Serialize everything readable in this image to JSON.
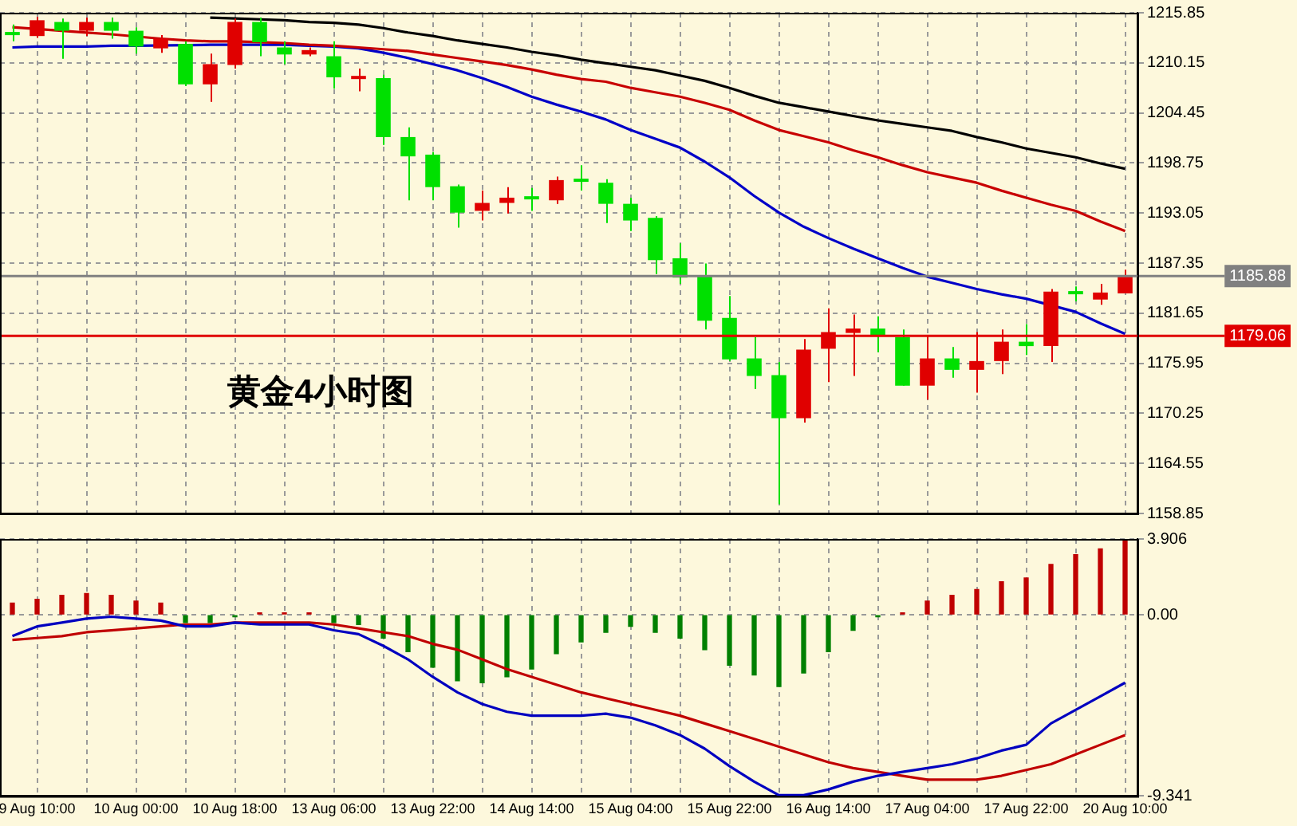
{
  "chart_data": [
    {
      "type": "candlestick",
      "categories": [
        null,
        null,
        null,
        null,
        null,
        null,
        null,
        null,
        null,
        null,
        null,
        null,
        null,
        null,
        null,
        null,
        null,
        null,
        null,
        null,
        null,
        null,
        null,
        null,
        null,
        null,
        null,
        null,
        null,
        null,
        null,
        null,
        null,
        null,
        null,
        null,
        null,
        null,
        null,
        null,
        null,
        null,
        null,
        null,
        null,
        null
      ],
      "ohlc": [
        [
          1213.5,
          1214.5,
          1212.6,
          1213.3
        ],
        [
          1213.2,
          1215.4,
          1213.0,
          1215.0
        ],
        [
          1214.8,
          1215.2,
          1210.6,
          1213.8
        ],
        [
          1213.8,
          1215.3,
          1213.2,
          1214.8
        ],
        [
          1214.8,
          1215.3,
          1212.9,
          1213.8
        ],
        [
          1213.8,
          1214.2,
          1211.2,
          1212.0
        ],
        [
          1211.8,
          1213.3,
          1211.3,
          1212.9
        ],
        [
          1212.3,
          1212.6,
          1207.5,
          1207.7
        ],
        [
          1207.7,
          1211.2,
          1205.7,
          1210.0
        ],
        [
          1209.9,
          1215.2,
          1209.5,
          1214.8
        ],
        [
          1214.8,
          1215.3,
          1210.9,
          1212.5
        ],
        [
          1211.9,
          1212.6,
          1210.0,
          1211.1
        ],
        [
          1211.1,
          1211.9,
          1210.9,
          1211.6
        ],
        [
          1210.9,
          1212.6,
          1207.2,
          1208.5
        ],
        [
          1208.3,
          1209.5,
          1206.9,
          1208.6
        ],
        [
          1208.4,
          1208.8,
          1200.8,
          1201.7
        ],
        [
          1201.7,
          1202.8,
          1194.5,
          1199.5
        ],
        [
          1199.7,
          1200.0,
          1194.5,
          1196.0
        ],
        [
          1196.1,
          1196.3,
          1191.4,
          1193.1
        ],
        [
          1193.3,
          1195.6,
          1192.2,
          1194.2
        ],
        [
          1194.2,
          1196.0,
          1193.0,
          1194.8
        ],
        [
          1194.8,
          1195.9,
          1193.3,
          1194.6
        ],
        [
          1194.5,
          1197.2,
          1194.1,
          1196.8
        ],
        [
          1196.8,
          1198.5,
          1195.6,
          1196.6
        ],
        [
          1196.5,
          1196.9,
          1191.9,
          1194.1
        ],
        [
          1194.1,
          1194.8,
          1191.0,
          1192.2
        ],
        [
          1192.5,
          1192.7,
          1186.1,
          1187.7
        ],
        [
          1187.9,
          1189.6,
          1185.0,
          1185.7
        ],
        [
          1185.9,
          1187.3,
          1179.8,
          1180.8
        ],
        [
          1181.1,
          1183.6,
          1176.2,
          1176.4
        ],
        [
          1176.5,
          1178.9,
          1173.0,
          1174.5
        ],
        [
          1174.6,
          1176.1,
          1159.9,
          1169.7
        ],
        [
          1169.7,
          1178.7,
          1169.2,
          1177.5
        ],
        [
          1177.6,
          1182.2,
          1173.8,
          1179.5
        ],
        [
          1179.4,
          1181.5,
          1174.5,
          1179.9
        ],
        [
          1179.9,
          1181.3,
          1177.2,
          1179.1
        ],
        [
          1178.9,
          1179.8,
          1173.4,
          1173.4
        ],
        [
          1173.4,
          1179.1,
          1171.8,
          1176.5
        ],
        [
          1176.5,
          1177.8,
          1174.3,
          1175.2
        ],
        [
          1175.2,
          1179.5,
          1172.6,
          1176.2
        ],
        [
          1176.2,
          1179.8,
          1174.7,
          1178.4
        ],
        [
          1178.4,
          1180.4,
          1176.9,
          1177.9
        ],
        [
          1177.9,
          1184.4,
          1176.1,
          1184.1
        ],
        [
          1184.0,
          1184.7,
          1183.0,
          1183.8
        ],
        [
          1183.2,
          1185.0,
          1182.6,
          1184.0
        ],
        [
          1183.9,
          1186.6,
          1183.9,
          1185.88
        ]
      ],
      "colors": [
        "#00e000",
        "#e00000",
        "#00e000",
        "#e00000",
        "#00e000",
        "#00e000",
        "#e00000",
        "#00e000",
        "#e00000",
        "#e00000",
        "#00e000",
        "#00e000",
        "#e00000",
        "#00e000",
        "#e00000",
        "#00e000",
        "#00e000",
        "#00e000",
        "#00e000",
        "#e00000",
        "#e00000",
        "#00e000",
        "#e00000",
        "#00e000",
        "#00e000",
        "#00e000",
        "#00e000",
        "#00e000",
        "#00e000",
        "#00e000",
        "#00e000",
        "#00e000",
        "#e00000",
        "#e00000",
        "#e00000",
        "#00e000",
        "#00e000",
        "#e00000",
        "#00e000",
        "#e00000",
        "#e00000",
        "#00e000",
        "#e00000",
        "#00e000",
        "#e00000",
        "#e00000"
      ],
      "series": [
        {
          "type": "line",
          "color": "#000000",
          "values": [
            null,
            null,
            null,
            null,
            null,
            null,
            null,
            null,
            1215.3,
            1215.2,
            1215.1,
            1215.0,
            1214.8,
            1214.7,
            1214.5,
            1214.1,
            1213.6,
            1213.2,
            1212.7,
            1212.3,
            1211.9,
            1211.4,
            1211.0,
            1210.5,
            1210.1,
            1209.7,
            1209.3,
            1208.7,
            1208.1,
            1207.3,
            1206.4,
            1205.6,
            1205.1,
            1204.6,
            1204.1,
            1203.6,
            1203.2,
            1202.8,
            1202.4,
            1201.7,
            1201.1,
            1200.4,
            1199.9,
            1199.4,
            1198.7,
            1198.1
          ]
        },
        {
          "type": "line",
          "color": "#c80000",
          "values": [
            1214.2,
            1214.0,
            1213.8,
            1213.6,
            1213.4,
            null,
            1212.9,
            1212.7,
            1212.6,
            1212.6,
            1212.5,
            1212.4,
            1212.2,
            1212.1,
            1211.9,
            1211.7,
            1211.5,
            1211.1,
            1210.7,
            1210.3,
            1209.9,
            1209.4,
            1208.8,
            1208.3,
            1208.0,
            1207.3,
            1206.8,
            1206.3,
            1205.6,
            1204.8,
            1203.6,
            1202.5,
            1201.8,
            1201.1,
            1200.2,
            1199.4,
            1198.5,
            1197.7,
            1197.1,
            1196.5,
            1195.6,
            1194.8,
            1194.0,
            1193.3,
            1192.1,
            1191.0
          ]
        },
        {
          "type": "line",
          "color": "#0000c8",
          "values": [
            1211.9,
            1212.0,
            1212.0,
            1212.0,
            1212.1,
            1212.1,
            null,
            null,
            1212.2,
            null,
            1212.2,
            1212.2,
            1212.1,
            1212.0,
            1211.8,
            1211.3,
            1210.7,
            1210.0,
            1209.3,
            1208.4,
            1207.4,
            1206.3,
            1205.4,
            1204.6,
            1203.7,
            1202.5,
            1201.5,
            1200.5,
            1198.9,
            1197.1,
            1195.0,
            1193.1,
            1191.5,
            1190.2,
            1189.0,
            1187.9,
            1186.8,
            1185.8,
            1185.1,
            1184.4,
            1183.8,
            1183.3,
            null,
            1181.8,
            1180.5,
            1179.3
          ]
        }
      ],
      "ylim": [
        1158.85,
        1215.85
      ],
      "yticks": [
        1158.85,
        1164.55,
        1170.25,
        1175.95,
        1181.65,
        1187.35,
        1193.05,
        1198.75,
        1204.45,
        1210.15,
        1215.85
      ],
      "ref_lines": [
        {
          "axis": "y",
          "value": 1185.88,
          "label": "1185.88",
          "color": "#808080"
        },
        {
          "axis": "y",
          "value": 1179.06,
          "label": "1179.06",
          "color": "#e00000"
        }
      ],
      "annotations": [
        "黄金4小时图"
      ],
      "grid": true,
      "tick_labels": "y"
    },
    {
      "type": "bar",
      "categories": [
        null,
        "9 Aug 10:00",
        null,
        null,
        null,
        "10 Aug 00:00",
        null,
        null,
        null,
        "10 Aug 18:00",
        null,
        null,
        null,
        "13 Aug 06:00",
        null,
        null,
        null,
        "13 Aug 22:00",
        null,
        null,
        null,
        "14 Aug 14:00",
        null,
        null,
        null,
        "15 Aug 04:00",
        null,
        null,
        null,
        "15 Aug 22:00",
        null,
        null,
        null,
        "16 Aug 14:00",
        null,
        null,
        null,
        "17 Aug 04:00",
        null,
        null,
        null,
        "17 Aug 22:00",
        null,
        null,
        null,
        "20 Aug 10:00"
      ],
      "series": [
        {
          "values": [
            0.6,
            0.8,
            1.0,
            1.1,
            1.0,
            0.7,
            0.6,
            -0.4,
            -0.4,
            -0.1,
            0.1,
            0.1,
            0.1,
            -0.4,
            -0.5,
            -1.2,
            -1.9,
            -2.7,
            -3.4,
            -3.5,
            -3.2,
            -2.8,
            -2.0,
            -1.4,
            -0.9,
            -0.6,
            -0.9,
            -1.2,
            -1.8,
            -2.6,
            -3.1,
            -3.7,
            -3.0,
            -1.9,
            -0.8,
            -0.1,
            0.1,
            0.7,
            1.0,
            1.3,
            1.7,
            1.9,
            2.6,
            3.1,
            3.4,
            3.8
          ],
          "colors": [
            "#c00000",
            "#c00000",
            "#c00000",
            "#c00000",
            "#c00000",
            "#c00000",
            "#c00000",
            "#008000",
            "#008000",
            "#008000",
            "#c00000",
            "#c00000",
            "#c00000",
            "#008000",
            "#008000",
            "#008000",
            "#008000",
            "#008000",
            "#008000",
            "#008000",
            "#008000",
            "#008000",
            "#008000",
            "#008000",
            "#008000",
            "#008000",
            "#008000",
            "#008000",
            "#008000",
            "#008000",
            "#008000",
            "#008000",
            "#008000",
            "#008000",
            "#008000",
            "#008000",
            "#c00000",
            "#c00000",
            "#c00000",
            "#c00000",
            "#c00000",
            "#c00000",
            "#c00000",
            "#c00000",
            "#c00000",
            "#c00000"
          ]
        },
        {
          "type": "line",
          "color": "#0000c0",
          "values": [
            -1.1,
            -0.6,
            -0.4,
            -0.2,
            -0.1,
            -0.2,
            -0.3,
            -0.6,
            -0.6,
            -0.4,
            -0.5,
            -0.5,
            -0.5,
            -0.8,
            -1.0,
            -1.6,
            -2.3,
            -3.2,
            -4.0,
            -4.6,
            -5.0,
            -5.2,
            -5.2,
            -5.2,
            -5.1,
            -5.3,
            -5.7,
            -6.2,
            -6.9,
            -7.8,
            -8.6,
            -9.3,
            -9.3,
            -9.0,
            -8.6,
            -8.3,
            -8.1,
            -7.9,
            -7.7,
            -7.4,
            -7.0,
            -6.7,
            -5.6,
            -4.9,
            -4.2,
            -3.5
          ]
        },
        {
          "type": "line",
          "color": "#c00000",
          "values": [
            -1.3,
            -1.2,
            -1.1,
            -0.9,
            -0.8,
            -0.7,
            -0.6,
            -0.5,
            -0.5,
            -0.4,
            -0.4,
            -0.4,
            -0.4,
            -0.5,
            -0.7,
            -0.9,
            -1.1,
            -1.5,
            -1.8,
            -2.3,
            -2.8,
            -3.2,
            -3.6,
            -4.0,
            -4.3,
            -4.6,
            -4.9,
            -5.2,
            -5.6,
            -6.0,
            -6.4,
            -6.8,
            -7.2,
            -7.6,
            -7.9,
            -8.1,
            -8.3,
            -8.5,
            -8.5,
            -8.5,
            -8.3,
            -8.0,
            -7.7,
            -7.2,
            -6.7,
            -6.2
          ]
        }
      ],
      "ylim": [
        -9.341,
        3.906
      ],
      "yticks": [
        -9.341,
        {
          "value": 0,
          "label": "0.00"
        },
        3.906
      ],
      "grid": true
    }
  ]
}
